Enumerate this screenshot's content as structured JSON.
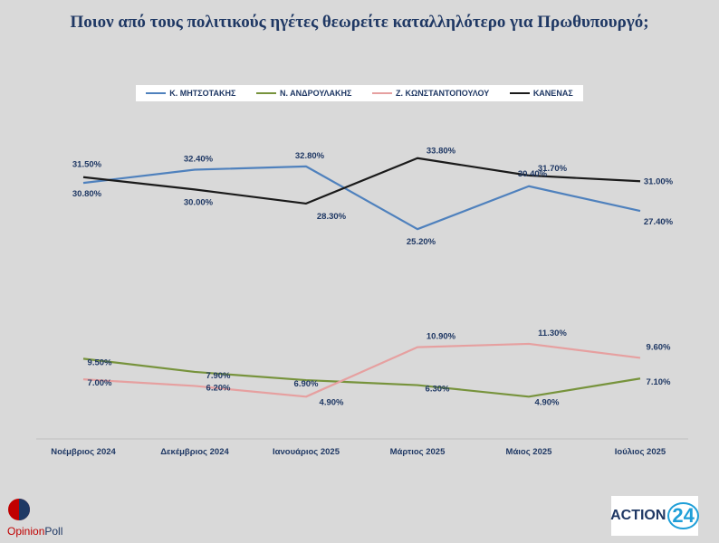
{
  "title": "Ποιον από τους πολιτικούς ηγέτες θεωρείτε καταλληλότερο για Πρωθυπουργό;",
  "brand": {
    "name_part1": "Opinion",
    "name_part2": "Poll",
    "partner": "ACTION",
    "partner_num": "24"
  },
  "colors": {
    "background": "#d9d9d9",
    "label": "#1f3864"
  },
  "chart_data": {
    "type": "line",
    "categories": [
      "Νοέμβριος 2024",
      "Δεκέμβριος  2024",
      "Ιανουάριος 2025",
      "Μάρτιος 2025",
      "Μάιος 2025",
      "Ιούλιος 2025"
    ],
    "series": [
      {
        "name": "Κ. ΜΗΤΣΟΤΑΚΗΣ",
        "color": "#4f81bd",
        "values": [
          30.8,
          32.4,
          32.8,
          25.2,
          30.4,
          27.4
        ],
        "labels": [
          "30.80%",
          "32.40%",
          "32.80%",
          "25.20%",
          "30.40%",
          "27.40%"
        ]
      },
      {
        "name": "Ν. ΑΝΔΡΟΥΛΑΚΗΣ",
        "color": "#77933c",
        "values": [
          9.5,
          7.9,
          6.9,
          6.3,
          4.9,
          7.1
        ],
        "labels": [
          "9.50%",
          "7.90%",
          "6.90%",
          "6.30%",
          "4.90%",
          "7.10%"
        ]
      },
      {
        "name": "Ζ. ΚΩΝΣΤΑΝΤΟΠΟΥΛΟΥ",
        "color": "#e6a0a0",
        "values": [
          7.0,
          6.2,
          4.9,
          10.9,
          11.3,
          9.6
        ],
        "labels": [
          "7.00%",
          "6.20%",
          "4.90%",
          "10.90%",
          "11.30%",
          "9.60%"
        ]
      },
      {
        "name": "ΚΑΝΕΝΑΣ",
        "color": "#1a1a1a",
        "values": [
          31.5,
          30.0,
          28.3,
          33.8,
          31.7,
          31.0
        ],
        "labels": [
          "31.50%",
          "30.00%",
          "28.30%",
          "33.80%",
          "31.70%",
          "31.00%"
        ]
      }
    ],
    "ylim": [
      0,
      40
    ],
    "legend": "top",
    "grid": false
  }
}
